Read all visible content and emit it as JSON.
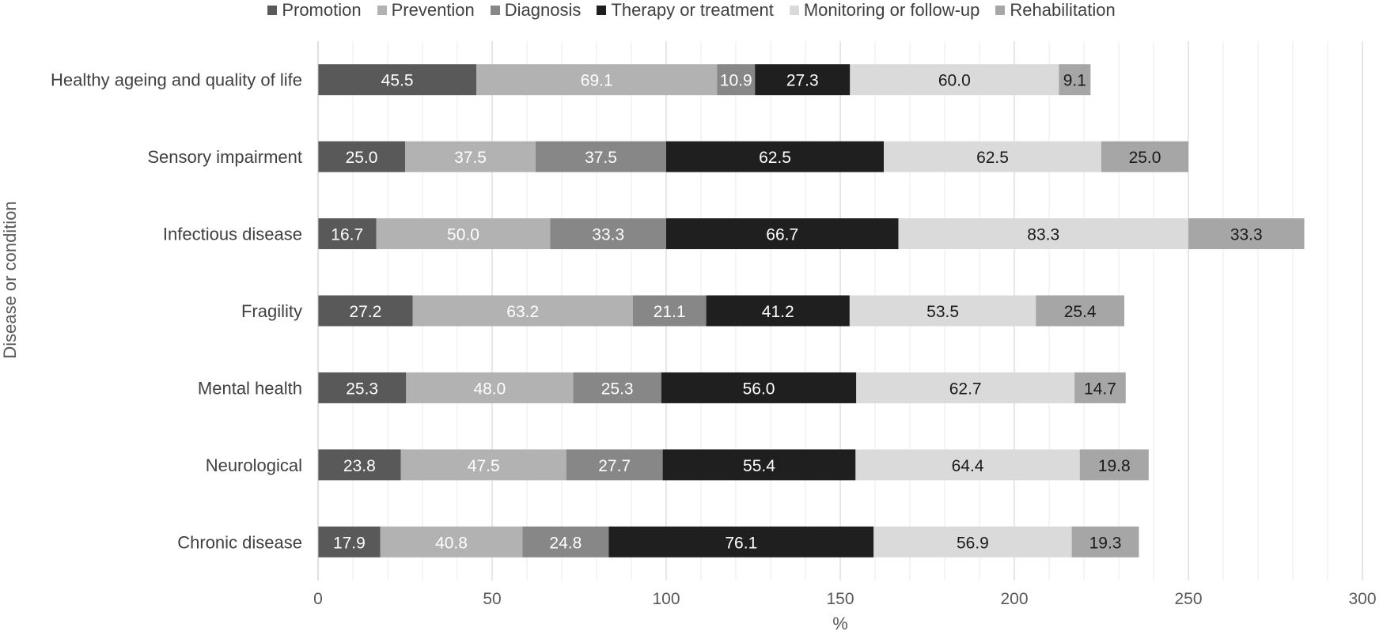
{
  "chart_data": {
    "type": "bar",
    "orientation": "horizontal",
    "stacked": true,
    "title": "",
    "xlabel": "%",
    "ylabel": "Disease or condition",
    "xlim": [
      0,
      300
    ],
    "x_ticks": [
      0,
      50,
      100,
      150,
      200,
      250,
      300
    ],
    "minor_grid_step": 10,
    "legend_position": "top",
    "categories": [
      "Healthy ageing and quality of life",
      "Sensory impairment",
      "Infectious disease",
      "Fragility",
      "Mental health",
      "Neurological",
      "Chronic disease"
    ],
    "series": [
      {
        "name": "Promotion",
        "color": "#595959",
        "label_color": "#ffffff",
        "values": [
          45.5,
          25.0,
          16.7,
          27.2,
          25.3,
          23.8,
          17.9
        ]
      },
      {
        "name": "Prevention",
        "color": "#b2b2b2",
        "label_color": "#ffffff",
        "values": [
          69.1,
          37.5,
          50.0,
          63.2,
          48.0,
          47.5,
          40.8
        ]
      },
      {
        "name": "Diagnosis",
        "color": "#878787",
        "label_color": "#ffffff",
        "values": [
          10.9,
          37.5,
          33.3,
          21.1,
          25.3,
          27.7,
          24.8
        ]
      },
      {
        "name": "Therapy or treatment",
        "color": "#1f1f1f",
        "label_color": "#ffffff",
        "values": [
          27.3,
          62.5,
          66.7,
          41.2,
          56.0,
          55.4,
          76.1
        ]
      },
      {
        "name": "Monitoring or follow-up",
        "color": "#dadada",
        "label_color": "#1a1a1a",
        "values": [
          60.0,
          62.5,
          83.3,
          53.5,
          62.7,
          64.4,
          56.9
        ]
      },
      {
        "name": "Rehabilitation",
        "color": "#a6a6a6",
        "label_color": "#1a1a1a",
        "values": [
          9.1,
          25.0,
          33.3,
          25.4,
          14.7,
          19.8,
          19.3
        ]
      }
    ]
  }
}
